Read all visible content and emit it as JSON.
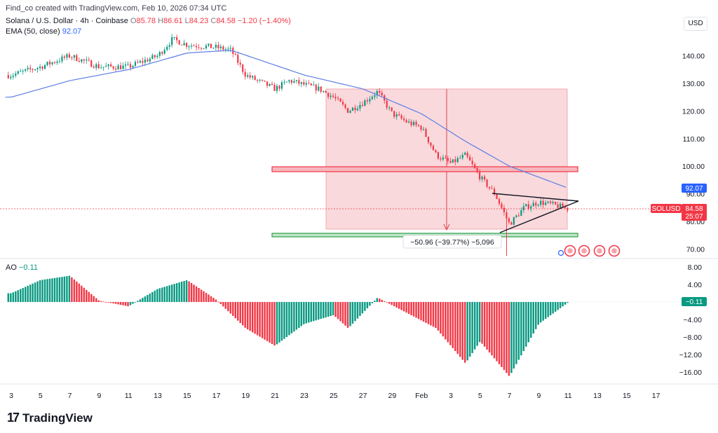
{
  "header": {
    "credit": "Find_co created with TradingView.com, Feb 10, 2026 07:34 UTC",
    "symbol_title": "Solana / U.S. Dollar · 4h · Coinbase",
    "o_label": "O",
    "o_value": "85.78",
    "h_label": "H",
    "h_value": "86.61",
    "l_label": "L",
    "l_value": "84.23",
    "c_label": "C",
    "c_value": "84.58",
    "change": "−1.20 (−1.40%)",
    "ema_label": "EMA (50, close)",
    "ema_value": "92.07",
    "currency_button": "USD"
  },
  "indicator": {
    "ao_label": "AO",
    "ao_value": "−0.11"
  },
  "brand": {
    "name": "TradingView",
    "logo_icon": "tradingview-logo-icon"
  },
  "colors": {
    "up": "#089981",
    "down": "#f23645",
    "ema": "#5b7ee5",
    "zone_fill": "#f8cfd3",
    "support": "#2e9e4a"
  },
  "annotations": {
    "measure_text": "−50.96 (−39.77%) −5,096"
  },
  "price_badges": {
    "ema": "92.07",
    "symbol": "SOLUSD",
    "last": "84.58",
    "countdown": "25:07",
    "ao_last": "−0.11"
  },
  "chart_data": [
    {
      "type": "candlestick",
      "title": "Solana / U.S. Dollar · 4h · Coinbase",
      "y_ticks": [
        "140.00",
        "130.00",
        "120.00",
        "110.00",
        "100.00",
        "90.00",
        "80.00",
        "70.00"
      ],
      "ylim": [
        67,
        150
      ],
      "x_ticks": [
        "3",
        "5",
        "7",
        "9",
        "11",
        "13",
        "15",
        "17",
        "19",
        "21",
        "23",
        "25",
        "27",
        "29",
        "Feb",
        "3",
        "5",
        "7",
        "9",
        "11",
        "13",
        "15",
        "17"
      ],
      "approx_close_path": [
        {
          "date": "Jan 3",
          "close": 133
        },
        {
          "date": "Jan 5",
          "close": 136
        },
        {
          "date": "Jan 7",
          "close": 140
        },
        {
          "date": "Jan 9",
          "close": 136
        },
        {
          "date": "Jan 11",
          "close": 136
        },
        {
          "date": "Jan 13",
          "close": 140
        },
        {
          "date": "Jan 14",
          "close": 146
        },
        {
          "date": "Jan 15",
          "close": 144
        },
        {
          "date": "Jan 17",
          "close": 143
        },
        {
          "date": "Jan 18",
          "close": 142
        },
        {
          "date": "Jan 19",
          "close": 133
        },
        {
          "date": "Jan 21",
          "close": 128
        },
        {
          "date": "Jan 22",
          "close": 131
        },
        {
          "date": "Jan 24",
          "close": 128
        },
        {
          "date": "Jan 25",
          "close": 125
        },
        {
          "date": "Jan 26",
          "close": 120
        },
        {
          "date": "Jan 27",
          "close": 123
        },
        {
          "date": "Jan 28",
          "close": 127
        },
        {
          "date": "Jan 29",
          "close": 119
        },
        {
          "date": "Jan 30",
          "close": 116
        },
        {
          "date": "Jan 31",
          "close": 114
        },
        {
          "date": "Feb 1",
          "close": 104
        },
        {
          "date": "Feb 2",
          "close": 101
        },
        {
          "date": "Feb 3",
          "close": 104
        },
        {
          "date": "Feb 4",
          "close": 96
        },
        {
          "date": "Feb 5",
          "close": 90
        },
        {
          "date": "Feb 6",
          "close": 79
        },
        {
          "date": "Feb 7",
          "close": 85
        },
        {
          "date": "Feb 8",
          "close": 87
        },
        {
          "date": "Feb 9",
          "close": 86
        },
        {
          "date": "Feb 10",
          "close": 84.58
        }
      ],
      "ema_50": [
        {
          "date": "Jan 3",
          "value": 125
        },
        {
          "date": "Jan 7",
          "value": 131
        },
        {
          "date": "Jan 11",
          "value": 135
        },
        {
          "date": "Jan 15",
          "value": 141
        },
        {
          "date": "Jan 18",
          "value": 142
        },
        {
          "date": "Jan 23",
          "value": 133
        },
        {
          "date": "Jan 27",
          "value": 128
        },
        {
          "date": "Jan 31",
          "value": 119
        },
        {
          "date": "Feb 3",
          "value": 109
        },
        {
          "date": "Feb 6",
          "value": 100
        },
        {
          "date": "Feb 10",
          "value": 92.07
        }
      ],
      "drawings": {
        "measure_box": {
          "from_date": "Jan 25",
          "to_date": "Feb 10",
          "top": 128.2,
          "bottom": 77.2,
          "label": "−50.96 (−39.77%) −5,096"
        },
        "resistance_zone": {
          "from_date": "Jan 21",
          "to_date": "Feb 10",
          "top": 100.0,
          "bottom": 98.2
        },
        "support_zone": {
          "from_date": "Jan 21",
          "to_date": "Feb 10",
          "top": 76.2,
          "bottom": 75.0
        },
        "triangle": [
          {
            "date": "Feb 5",
            "price": 89
          },
          {
            "date": "Feb 11",
            "price": 87
          },
          {
            "date": "Feb 6",
            "price": 76
          }
        ]
      },
      "last_price": 84.58
    },
    {
      "type": "bar",
      "title": "AO",
      "y_ticks": [
        "8.00",
        "4.00",
        "0.00",
        "−4.00",
        "−8.00",
        "−12.00",
        "−16.00"
      ],
      "ylim": [
        -18,
        9
      ],
      "approx_values": [
        {
          "date": "Jan 3",
          "value": 2
        },
        {
          "date": "Jan 5",
          "value": 5
        },
        {
          "date": "Jan 7",
          "value": 6
        },
        {
          "date": "Jan 9",
          "value": 0.3
        },
        {
          "date": "Jan 11",
          "value": -1
        },
        {
          "date": "Jan 13",
          "value": 3
        },
        {
          "date": "Jan 15",
          "value": 5
        },
        {
          "date": "Jan 17",
          "value": 0.5
        },
        {
          "date": "Jan 19",
          "value": -6
        },
        {
          "date": "Jan 21",
          "value": -10
        },
        {
          "date": "Jan 23",
          "value": -5
        },
        {
          "date": "Jan 25",
          "value": -3
        },
        {
          "date": "Jan 26",
          "value": -6
        },
        {
          "date": "Jan 28",
          "value": 1
        },
        {
          "date": "Feb 1",
          "value": -6
        },
        {
          "date": "Feb 3",
          "value": -14
        },
        {
          "date": "Feb 4",
          "value": -9
        },
        {
          "date": "Feb 6",
          "value": -17
        },
        {
          "date": "Feb 8",
          "value": -5
        },
        {
          "date": "Feb 10",
          "value": -0.11
        }
      ],
      "last_value": -0.11
    }
  ]
}
